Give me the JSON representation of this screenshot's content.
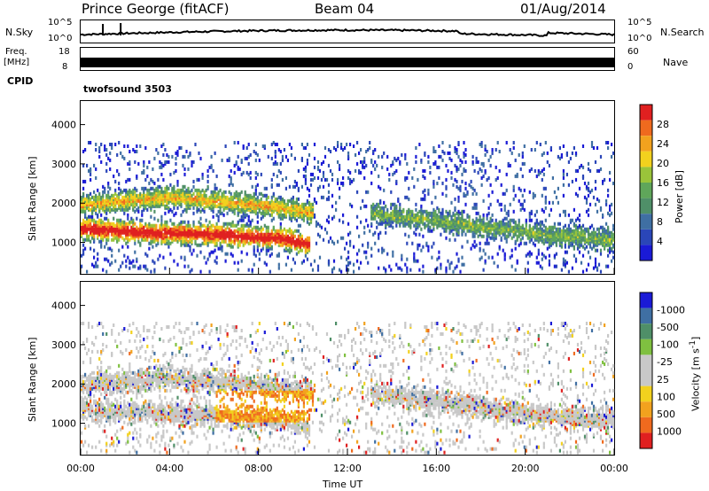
{
  "header": {
    "station": "Prince George (fitACF)",
    "beam": "Beam 04",
    "date": "01/Aug/2014"
  },
  "top_panels": {
    "nsky": {
      "label": "N.Sky",
      "tick_hi": "10^5",
      "tick_lo": "10^0",
      "right_label": "N.Search",
      "right_hi": "10^5",
      "right_lo": "10^0"
    },
    "freq": {
      "label_top": "Freq.",
      "label_bottom": "[MHz]",
      "tick_hi": "18",
      "tick_lo": "8",
      "right_label": "Nave",
      "right_hi": "60",
      "right_lo": "0"
    },
    "cpid": {
      "label": "CPID",
      "value": "twofsound 3503"
    }
  },
  "colors": {
    "power_scale": [
      "#1a1ad6",
      "#2a46b8",
      "#3f6fa3",
      "#4f8f68",
      "#5fa65a",
      "#9ac43a",
      "#f2d11e",
      "#f2a21e",
      "#ef6a1e",
      "#e02020"
    ],
    "velocity_scale": [
      "#e02020",
      "#ef6a1e",
      "#f2a21e",
      "#f2d11e",
      "#c8c8c8",
      "#c8c8c8",
      "#7fc040",
      "#4f8f68",
      "#3f6fa3",
      "#1a1ad6"
    ]
  },
  "chart_data": [
    {
      "type": "heatmap",
      "title": "",
      "xlabel": "",
      "ylabel": "Slant Range [km]",
      "x_ticks": [
        "00:00",
        "04:00",
        "08:00",
        "12:00",
        "16:00",
        "20:00",
        "00:00"
      ],
      "y_ticks": [
        "1000",
        "2000",
        "3000",
        "4000"
      ],
      "ylim": [
        200,
        4600
      ],
      "colorbar": {
        "label": "Power [dB]",
        "ticks": [
          "4",
          "8",
          "12",
          "16",
          "20",
          "24",
          "28"
        ]
      },
      "features": [
        {
          "name": "strong band",
          "x": [
            0,
            3,
            6,
            9,
            10.3
          ],
          "y": [
            1400,
            1300,
            1250,
            1150,
            1000
          ],
          "level": "high"
        },
        {
          "name": "upper band",
          "x": [
            0,
            4,
            8,
            10.5
          ],
          "y": [
            2000,
            2200,
            2000,
            1800
          ],
          "level": "mid"
        },
        {
          "name": "late band",
          "x": [
            13,
            16,
            20,
            24
          ],
          "y": [
            1800,
            1600,
            1300,
            1100
          ],
          "level": "low"
        }
      ]
    },
    {
      "type": "heatmap",
      "title": "",
      "xlabel": "Time UT",
      "ylabel": "Slant Range [km]",
      "x_ticks": [
        "00:00",
        "04:00",
        "08:00",
        "12:00",
        "16:00",
        "20:00",
        "00:00"
      ],
      "y_ticks": [
        "1000",
        "2000",
        "3000",
        "4000"
      ],
      "ylim": [
        200,
        4600
      ],
      "colorbar": {
        "label": "Velocity [m s^-1]",
        "ticks": [
          "1000",
          "500",
          "100",
          "25",
          "-25",
          "-100",
          "-500",
          "-1000"
        ]
      }
    }
  ]
}
